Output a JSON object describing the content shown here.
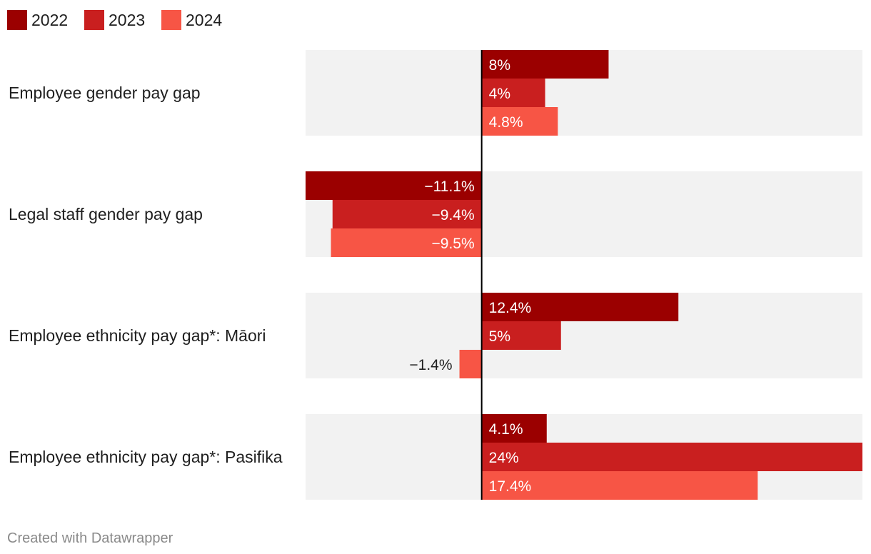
{
  "chart_data": {
    "type": "bar",
    "orientation": "horizontal",
    "categories": [
      "Employee gender pay gap",
      "Legal staff gender pay gap",
      "Employee ethnicity pay gap*: Māori",
      "Employee ethnicity pay gap*: Pasifika"
    ],
    "series": [
      {
        "name": "2022",
        "color": "#9b0000",
        "values": [
          8,
          -11.1,
          12.4,
          4.1
        ],
        "labels": [
          "8%",
          "−11.1%",
          "12.4%",
          "4.1%"
        ]
      },
      {
        "name": "2023",
        "color": "#c91f1f",
        "values": [
          4,
          -9.4,
          5,
          24
        ],
        "labels": [
          "4%",
          "−9.4%",
          "5%",
          "24%"
        ]
      },
      {
        "name": "2024",
        "color": "#f75545",
        "values": [
          4.8,
          -9.5,
          -1.4,
          17.4
        ],
        "labels": [
          "4.8%",
          "−9.5%",
          "−1.4%",
          "17.4%"
        ]
      }
    ],
    "xlim": [
      -11.1,
      24
    ],
    "legend_position": "top-left",
    "background_band_color": "#f2f2f2",
    "axis_color": "#000000",
    "source": "Created with Datawrapper"
  }
}
